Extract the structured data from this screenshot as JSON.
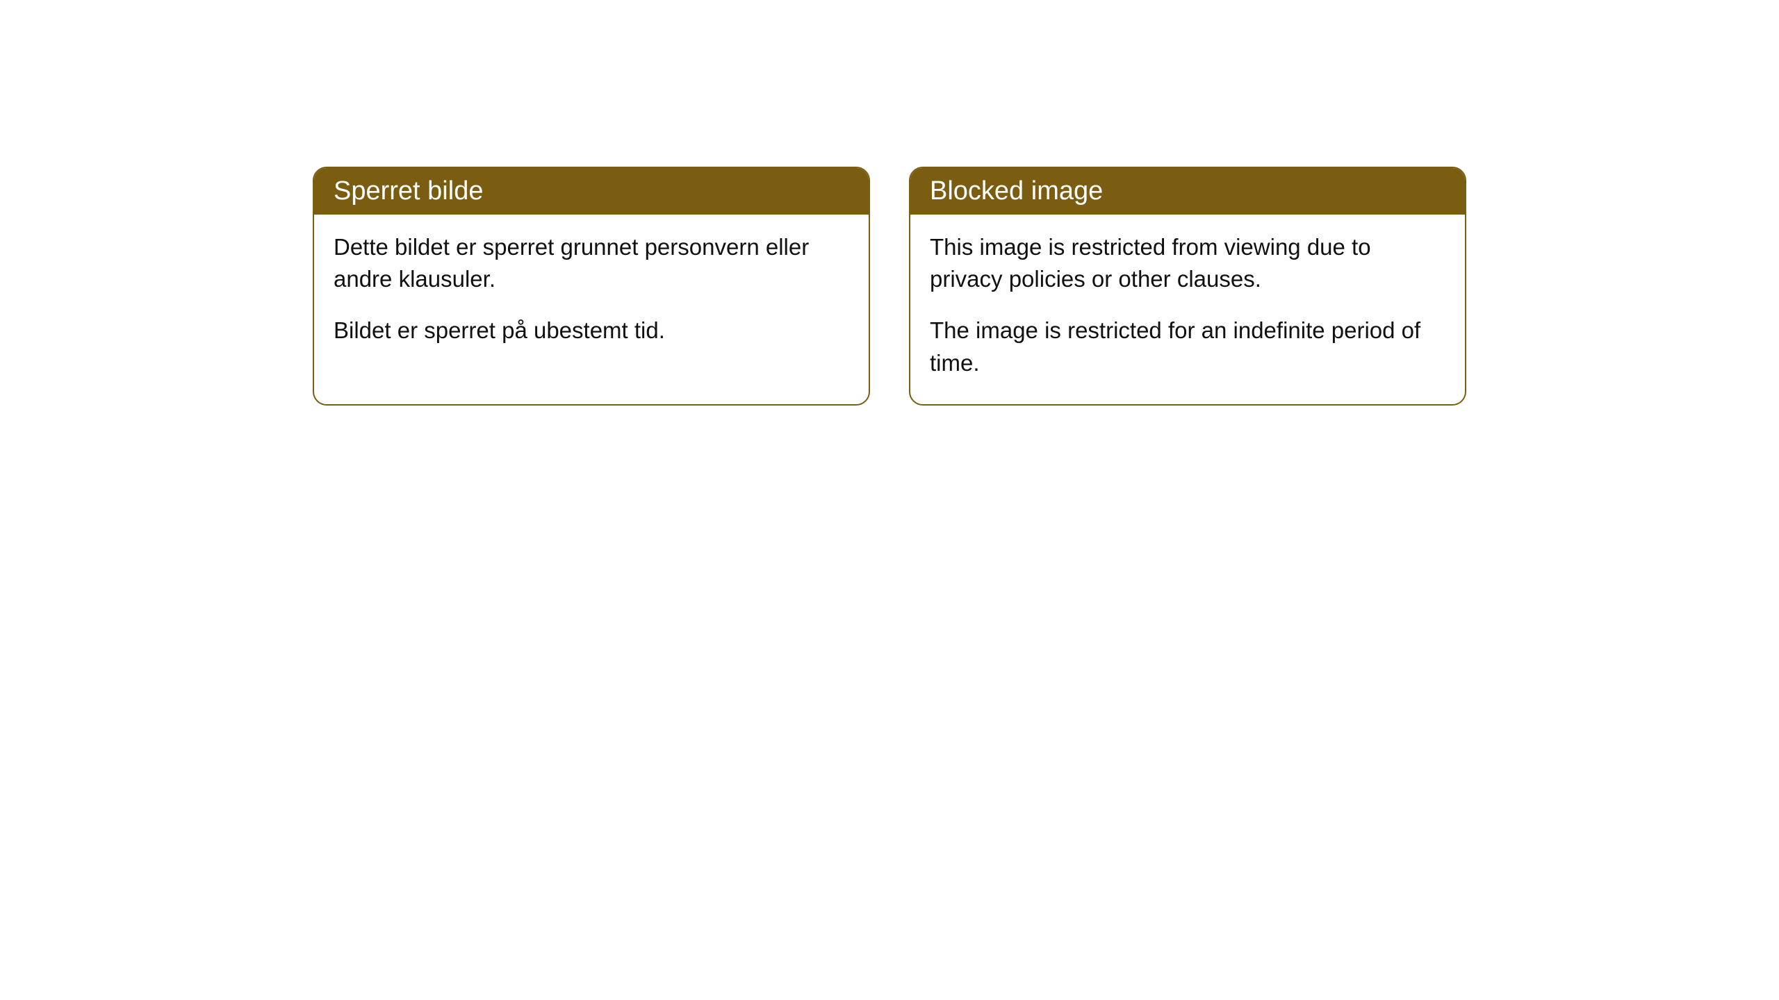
{
  "cards": {
    "norwegian": {
      "title": "Sperret bilde",
      "paragraph1": "Dette bildet er sperret grunnet personvern eller andre klausuler.",
      "paragraph2": "Bildet er sperret på ubestemt tid."
    },
    "english": {
      "title": "Blocked image",
      "paragraph1": "This image is restricted from viewing due to privacy policies or other clauses.",
      "paragraph2": "The image is restricted for an indefinite period of time."
    }
  },
  "styling": {
    "header_background": "#7a5d10",
    "header_text_color": "#ffffff",
    "border_color": "#7a5d10",
    "body_background": "#ffffff",
    "body_text_color": "#111111",
    "border_radius": 20,
    "header_fontsize": 38,
    "body_fontsize": 33
  }
}
